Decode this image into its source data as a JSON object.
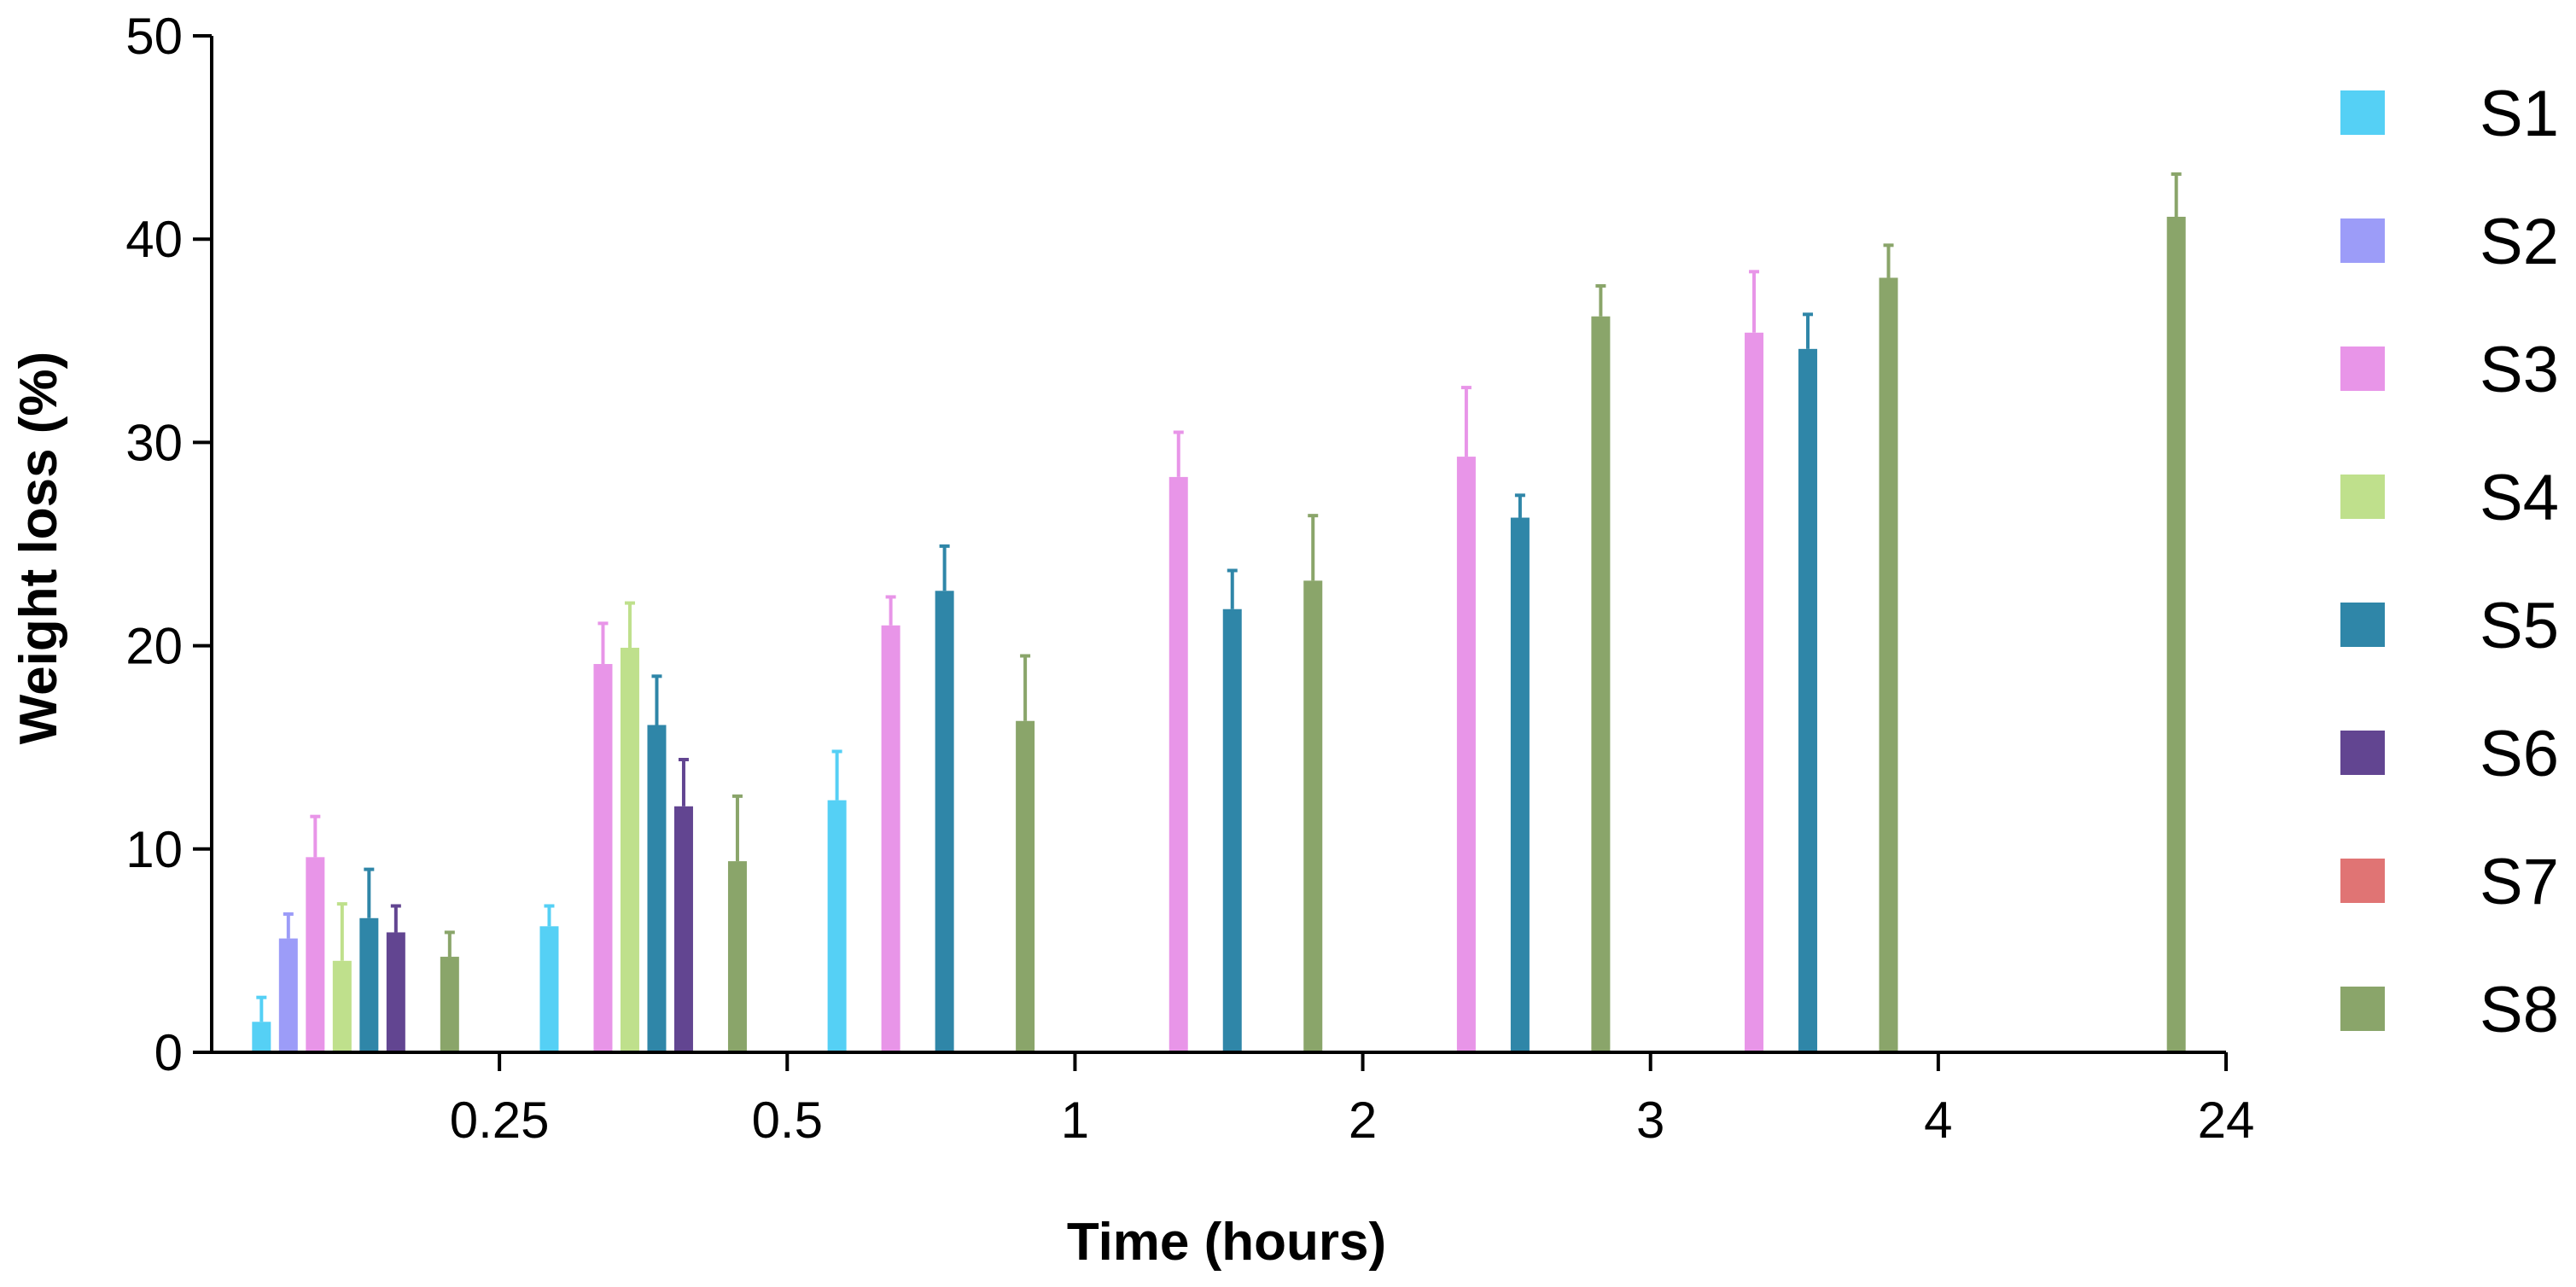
{
  "chart_data": {
    "type": "bar",
    "title": "",
    "xlabel": "Time (hours)",
    "ylabel": "Weight loss (%)",
    "ylim": [
      0,
      50
    ],
    "yticks": [
      0,
      10,
      20,
      30,
      40,
      50
    ],
    "categories": [
      "0.25",
      "0.5",
      "1",
      "2",
      "3",
      "4",
      "24"
    ],
    "legend_position": "right",
    "grid": false,
    "series": [
      {
        "name": "S1",
        "color": "#55d0f5",
        "values": [
          1.5,
          6.2,
          12.4,
          null,
          null,
          null,
          null
        ],
        "errors": [
          1.2,
          1.0,
          2.4,
          null,
          null,
          null,
          null
        ]
      },
      {
        "name": "S2",
        "color": "#9c9cf8",
        "values": [
          5.6,
          null,
          null,
          null,
          null,
          null,
          null
        ],
        "errors": [
          1.2,
          null,
          null,
          null,
          null,
          null,
          null
        ]
      },
      {
        "name": "S3",
        "color": "#e895e8",
        "values": [
          9.6,
          19.1,
          21.0,
          28.3,
          29.3,
          35.4,
          null
        ],
        "errors": [
          2.0,
          2.0,
          1.4,
          2.2,
          3.4,
          3.0,
          null
        ]
      },
      {
        "name": "S4",
        "color": "#bfe08c",
        "values": [
          4.5,
          19.9,
          null,
          null,
          null,
          null,
          null
        ],
        "errors": [
          2.8,
          2.2,
          null,
          null,
          null,
          null,
          null
        ]
      },
      {
        "name": "S5",
        "color": "#2f86a8",
        "values": [
          6.6,
          16.1,
          22.7,
          21.8,
          26.3,
          34.6,
          null
        ],
        "errors": [
          2.4,
          2.4,
          2.2,
          1.9,
          1.1,
          1.7,
          null
        ]
      },
      {
        "name": "S6",
        "color": "#624591",
        "values": [
          5.9,
          12.1,
          null,
          null,
          null,
          null,
          null
        ],
        "errors": [
          1.3,
          2.3,
          null,
          null,
          null,
          null,
          null
        ]
      },
      {
        "name": "S7",
        "color": "#e07474",
        "values": [
          null,
          null,
          null,
          null,
          null,
          null,
          null
        ],
        "errors": [
          null,
          null,
          null,
          null,
          null,
          null,
          null
        ]
      },
      {
        "name": "S8",
        "color": "#8aa56a",
        "values": [
          4.7,
          9.4,
          16.3,
          23.2,
          36.2,
          38.1,
          41.1
        ],
        "errors": [
          1.2,
          3.2,
          3.2,
          3.2,
          1.5,
          1.6,
          2.1
        ]
      }
    ]
  }
}
